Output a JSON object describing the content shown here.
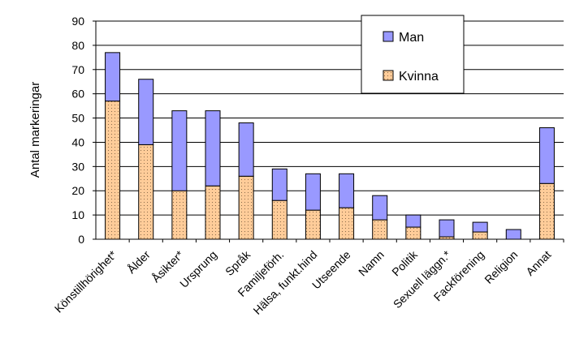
{
  "chart_data": {
    "type": "bar",
    "stacked": true,
    "categories": [
      "Könstillhörighet*",
      "Ålder",
      "Åsikter*",
      "Ursprung",
      "Språk",
      "Familjeförh.",
      "Hälsa, funkt.hind",
      "Utseende",
      "Namn",
      "Politik",
      "Sexuell läggn.*",
      "Fackförening",
      "Religion",
      "Annat"
    ],
    "series": [
      {
        "name": "Kvinna",
        "values": [
          57,
          39,
          20,
          22,
          26,
          16,
          12,
          13,
          8,
          5,
          1,
          3,
          0,
          23
        ]
      },
      {
        "name": "Man",
        "values": [
          20,
          27,
          33,
          31,
          22,
          13,
          15,
          14,
          10,
          5,
          7,
          4,
          4,
          23
        ]
      }
    ],
    "ylabel": "Antal markeringar",
    "ylim": [
      0,
      90
    ],
    "yticks": [
      "0",
      "10",
      "20",
      "30",
      "40",
      "50",
      "60",
      "70",
      "80",
      "90"
    ],
    "grid": true,
    "legend": "top-right",
    "colors": {
      "Man": "#9999ff",
      "Kvinna": "#ffcc99"
    }
  }
}
